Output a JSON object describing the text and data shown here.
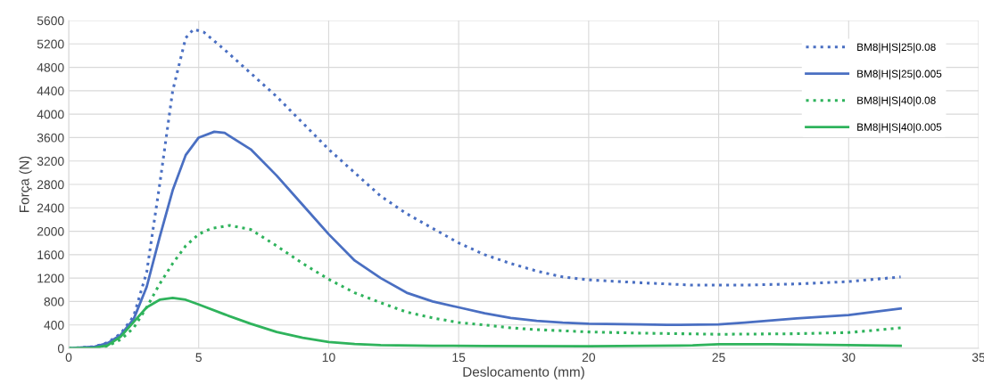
{
  "chart_data": {
    "type": "line",
    "xlabel": "Deslocamento (mm)",
    "ylabel": "Força (N)",
    "xlim": [
      0,
      35
    ],
    "xticks": [
      0,
      5,
      10,
      15,
      20,
      25,
      30,
      35
    ],
    "ylim": [
      0,
      5600
    ],
    "yticks": [
      0,
      400,
      800,
      1200,
      1600,
      2000,
      2400,
      2800,
      3200,
      3600,
      4000,
      4400,
      4800,
      5200,
      5600
    ],
    "grid": true,
    "legend": "top right",
    "series": [
      {
        "name": "BM8|H|S|25|0.08",
        "color": "#4a6fc2",
        "line_style": "dotted",
        "x": [
          0,
          1,
          1.5,
          2,
          2.5,
          3,
          3.5,
          4,
          4.5,
          4.8,
          5.2,
          6,
          7,
          8,
          9,
          10,
          11,
          12,
          13,
          14,
          15,
          16,
          17,
          18,
          19,
          20,
          22,
          24,
          26,
          28,
          30,
          32
        ],
        "values": [
          0,
          30,
          100,
          250,
          550,
          1300,
          2800,
          4400,
          5300,
          5450,
          5400,
          5100,
          4700,
          4300,
          3850,
          3400,
          3000,
          2600,
          2300,
          2050,
          1800,
          1600,
          1450,
          1320,
          1220,
          1170,
          1120,
          1080,
          1080,
          1100,
          1140,
          1220
        ]
      },
      {
        "name": "BM8|H|S|25|0.005",
        "color": "#4a6fc2",
        "line_style": "solid",
        "x": [
          0,
          1,
          1.5,
          2,
          2.5,
          3,
          3.5,
          4,
          4.5,
          5,
          5.6,
          6,
          7,
          8,
          9,
          10,
          11,
          12,
          13,
          14,
          15,
          16,
          17,
          18,
          19,
          20,
          22,
          23,
          25,
          26,
          28,
          30,
          32
        ],
        "values": [
          0,
          30,
          90,
          230,
          500,
          1050,
          1900,
          2700,
          3300,
          3600,
          3700,
          3680,
          3400,
          2950,
          2450,
          1950,
          1500,
          1200,
          950,
          800,
          700,
          600,
          520,
          470,
          440,
          420,
          410,
          400,
          410,
          440,
          510,
          570,
          680
        ]
      },
      {
        "name": "BM8|H|S|40|0.08",
        "color": "#2fb35c",
        "line_style": "dotted",
        "x": [
          0,
          1,
          1.5,
          2,
          2.5,
          3,
          3.5,
          4,
          4.5,
          5,
          5.5,
          6.2,
          7,
          8,
          9,
          10,
          11,
          12,
          13,
          14,
          15,
          16,
          17,
          18,
          20,
          22,
          25,
          28,
          30,
          32
        ],
        "values": [
          0,
          5,
          40,
          150,
          350,
          700,
          1100,
          1450,
          1750,
          1950,
          2050,
          2100,
          2030,
          1750,
          1450,
          1180,
          950,
          780,
          620,
          520,
          440,
          400,
          350,
          320,
          280,
          260,
          240,
          250,
          270,
          350
        ]
      },
      {
        "name": "BM8|H|S|40|0.005",
        "color": "#2fb35c",
        "line_style": "solid",
        "x": [
          0,
          1,
          1.5,
          2,
          2.5,
          3,
          3.5,
          4,
          4.5,
          5,
          6,
          7,
          8,
          9,
          10,
          11,
          12,
          14,
          16,
          20,
          24,
          25,
          27,
          30,
          32
        ],
        "values": [
          0,
          10,
          50,
          200,
          450,
          700,
          830,
          860,
          830,
          750,
          580,
          420,
          280,
          180,
          110,
          75,
          55,
          45,
          40,
          35,
          50,
          70,
          70,
          55,
          45
        ]
      }
    ]
  }
}
